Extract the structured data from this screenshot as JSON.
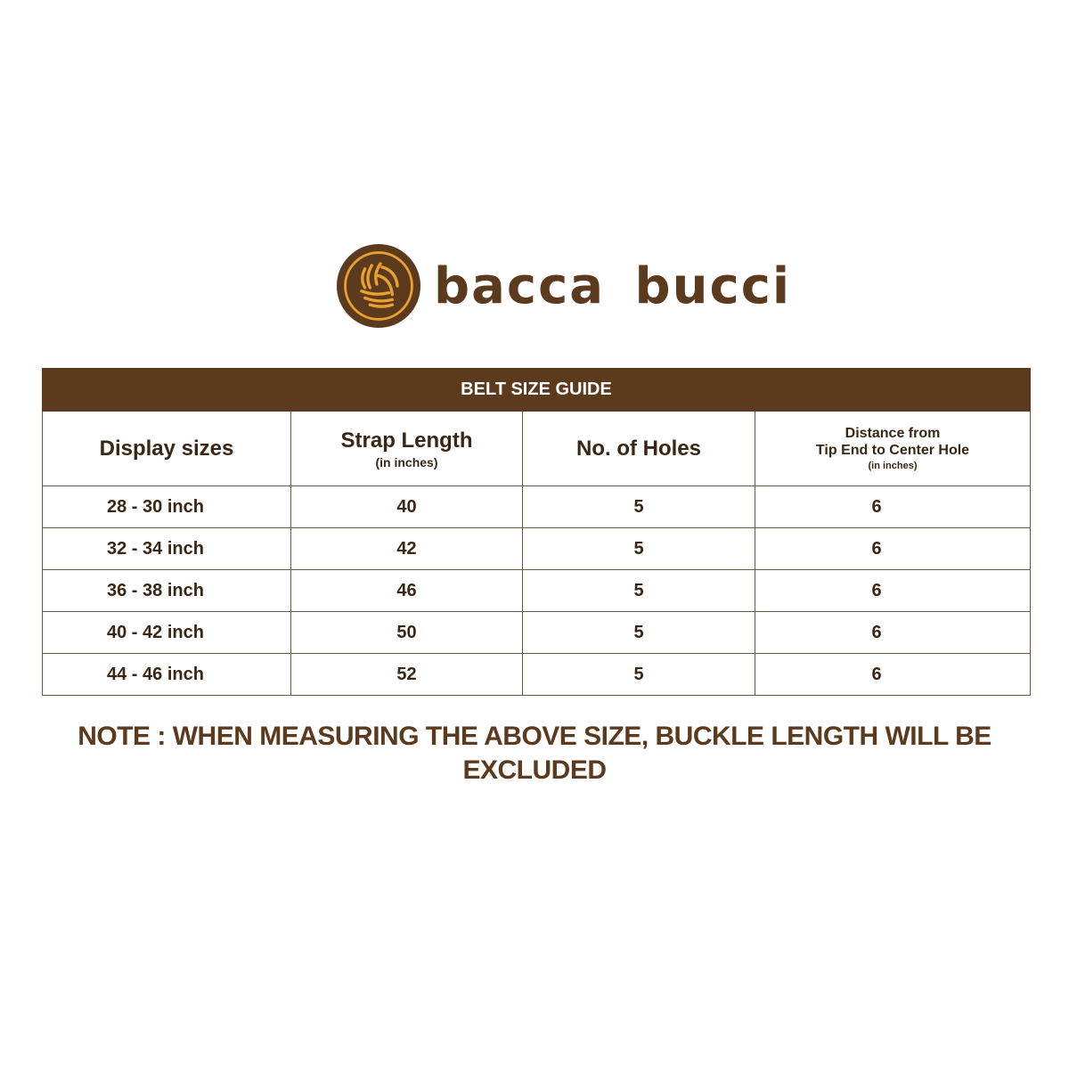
{
  "brand": {
    "name": "bacca bucci",
    "colors": {
      "brown": "#5b3a1e",
      "gold": "#e8a030"
    },
    "icon": "ball-logo-icon"
  },
  "table": {
    "title": "BELT SIZE GUIDE",
    "headers": [
      {
        "label": "Display sizes",
        "sub": ""
      },
      {
        "label": "Strap Length",
        "sub": "(in inches)"
      },
      {
        "label": "No. of Holes",
        "sub": ""
      },
      {
        "label1": "Distance from",
        "label2": "Tip End to Center Hole",
        "sub": "(in inches)"
      }
    ],
    "rows": [
      [
        "28 - 30 inch",
        "40",
        "5",
        "6"
      ],
      [
        "32 - 34 inch",
        "42",
        "5",
        "6"
      ],
      [
        "36 - 38 inch",
        "46",
        "5",
        "6"
      ],
      [
        "40 - 42 inch",
        "50",
        "5",
        "6"
      ],
      [
        "44 - 46 inch",
        "52",
        "5",
        "6"
      ]
    ]
  },
  "note": "NOTE : WHEN MEASURING THE ABOVE SIZE, BUCKLE LENGTH WILL BE EXCLUDED"
}
